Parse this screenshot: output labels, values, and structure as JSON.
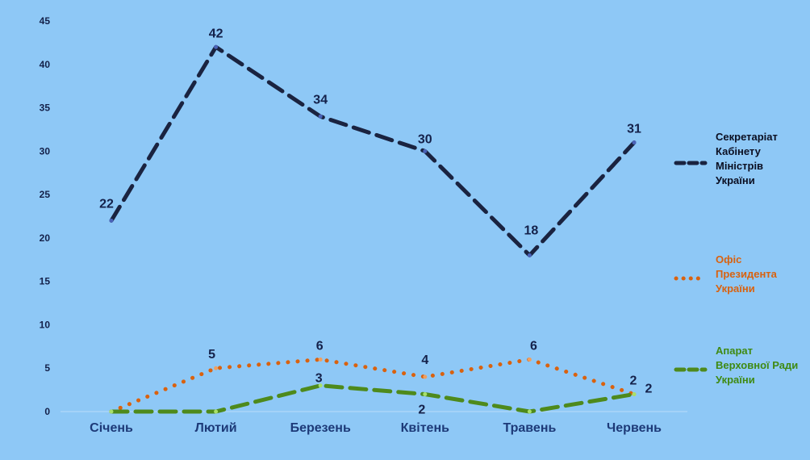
{
  "chart_data": {
    "type": "line",
    "categories": [
      "Січень",
      "Лютий",
      "Березень",
      "Квітень",
      "Травень",
      "Червень"
    ],
    "ylim": [
      0,
      45
    ],
    "yticks": [
      0,
      5,
      10,
      15,
      20,
      25,
      30,
      35,
      40,
      45
    ],
    "grid": false,
    "legend_position": "right",
    "series": [
      {
        "name": "Секретаріат Кабінету Міністрів України",
        "name_lines": [
          "Секретаріат",
          "Кабінету",
          "Міністрів",
          "України"
        ],
        "values": [
          22,
          42,
          34,
          30,
          18,
          31
        ],
        "color": "#1a2340",
        "text_color": "#0b0f22",
        "style": "dashed"
      },
      {
        "name": "Офіс Президента України",
        "name_lines": [
          "Офіс",
          "Президента",
          "України"
        ],
        "values": [
          0,
          5,
          6,
          4,
          6,
          2
        ],
        "color": "#d9620f",
        "text_color": "#d9620f",
        "style": "dotted"
      },
      {
        "name": "Апарат Верховної Ради України",
        "name_lines": [
          "Апарат",
          "Верховної Ради",
          "України"
        ],
        "values": [
          0,
          0,
          3,
          2,
          0,
          2
        ],
        "color": "#4e8a1c",
        "text_color": "#3f8a12",
        "style": "dashed"
      }
    ],
    "data_labels": [
      {
        "series": 0,
        "points": [
          0,
          1,
          2,
          3,
          4,
          5
        ]
      },
      {
        "series": 1,
        "points": [
          1,
          2,
          3,
          4,
          5
        ]
      },
      {
        "series": 2,
        "points": [
          2,
          3,
          5
        ]
      }
    ]
  }
}
